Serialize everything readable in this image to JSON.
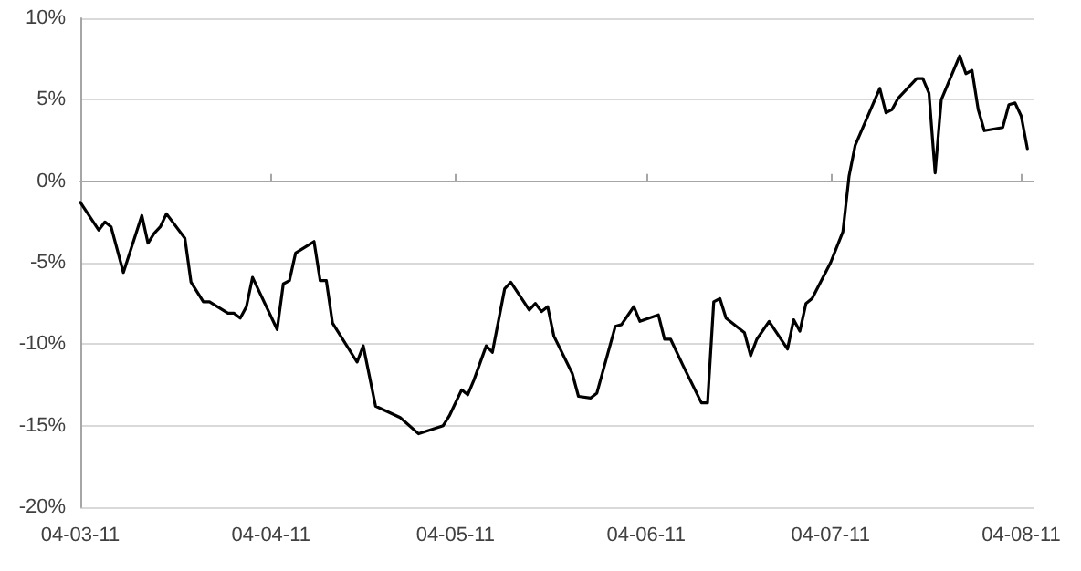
{
  "chart_data": {
    "type": "line",
    "color": "#000000",
    "marker": "none",
    "line_style": "solid",
    "grid": "y",
    "x": [
      "2011-03-04",
      "2011-03-07",
      "2011-03-08",
      "2011-03-09",
      "2011-03-11",
      "2011-03-14",
      "2011-03-15",
      "2011-03-16",
      "2011-03-17",
      "2011-03-18",
      "2011-03-21",
      "2011-03-22",
      "2011-03-24",
      "2011-03-25",
      "2011-03-28",
      "2011-03-29",
      "2011-03-30",
      "2011-03-31",
      "2011-04-01",
      "2011-04-05",
      "2011-04-06",
      "2011-04-07",
      "2011-04-08",
      "2011-04-11",
      "2011-04-12",
      "2011-04-13",
      "2011-04-14",
      "2011-04-18",
      "2011-04-19",
      "2011-04-21",
      "2011-04-25",
      "2011-04-28",
      "2011-05-02",
      "2011-05-03",
      "2011-05-05",
      "2011-05-06",
      "2011-05-07",
      "2011-05-09",
      "2011-05-10",
      "2011-05-12",
      "2011-05-13",
      "2011-05-16",
      "2011-05-17",
      "2011-05-18",
      "2011-05-19",
      "2011-05-20",
      "2011-05-23",
      "2011-05-24",
      "2011-05-26",
      "2011-05-27",
      "2011-05-30",
      "2011-05-31",
      "2011-06-02",
      "2011-06-03",
      "2011-06-06",
      "2011-06-07",
      "2011-06-08",
      "2011-06-10",
      "2011-06-13",
      "2011-06-14",
      "2011-06-15",
      "2011-06-16",
      "2011-06-17",
      "2011-06-20",
      "2011-06-21",
      "2011-06-22",
      "2011-06-24",
      "2011-06-27",
      "2011-06-28",
      "2011-06-29",
      "2011-06-30",
      "2011-07-01",
      "2011-07-04",
      "2011-07-06",
      "2011-07-07",
      "2011-07-08",
      "2011-07-12",
      "2011-07-13",
      "2011-07-14",
      "2011-07-15",
      "2011-07-18",
      "2011-07-19",
      "2011-07-20",
      "2011-07-21",
      "2011-07-22",
      "2011-07-25",
      "2011-07-26",
      "2011-07-27",
      "2011-07-28",
      "2011-07-29",
      "2011-08-01",
      "2011-08-02",
      "2011-08-03",
      "2011-08-04",
      "2011-08-05"
    ],
    "values": [
      -1.3,
      -3.0,
      -2.5,
      -2.8,
      -5.6,
      -2.1,
      -3.8,
      -3.2,
      -2.8,
      -2.0,
      -3.5,
      -6.2,
      -7.4,
      -7.4,
      -8.1,
      -8.1,
      -8.4,
      -7.7,
      -5.9,
      -9.1,
      -6.3,
      -6.1,
      -4.4,
      -3.7,
      -6.1,
      -6.1,
      -8.7,
      -11.1,
      -10.1,
      -13.8,
      -14.5,
      -15.5,
      -15.0,
      -14.4,
      -12.8,
      -13.1,
      -12.2,
      -10.1,
      -10.5,
      -6.6,
      -6.2,
      -7.9,
      -7.5,
      -8.0,
      -7.7,
      -9.5,
      -11.8,
      -13.2,
      -13.3,
      -13.0,
      -8.9,
      -8.8,
      -7.7,
      -8.6,
      -8.2,
      -9.7,
      -9.7,
      -11.3,
      -13.6,
      -13.6,
      -7.4,
      -7.2,
      -8.4,
      -9.3,
      -10.7,
      -9.7,
      -8.6,
      -10.3,
      -8.5,
      -9.2,
      -7.5,
      -7.2,
      -5.0,
      -3.1,
      0.3,
      2.2,
      5.7,
      4.2,
      4.4,
      5.1,
      6.3,
      6.3,
      5.4,
      0.5,
      5.0,
      7.7,
      6.6,
      6.8,
      4.4,
      3.1,
      3.3,
      4.7,
      4.8,
      4.0,
      2.0
    ],
    "xlim": [
      "2011-03-04",
      "2011-08-06"
    ],
    "xticks": [
      {
        "value": "2011-03-04",
        "label": "04-03-11"
      },
      {
        "value": "2011-04-04",
        "label": "04-04-11"
      },
      {
        "value": "2011-05-04",
        "label": "04-05-11"
      },
      {
        "value": "2011-06-04",
        "label": "04-06-11"
      },
      {
        "value": "2011-07-04",
        "label": "04-07-11"
      },
      {
        "value": "2011-08-04",
        "label": "04-08-11"
      }
    ],
    "ylim": [
      -20,
      10
    ],
    "yticks": [
      {
        "value": -20,
        "label": "-20%"
      },
      {
        "value": -15,
        "label": "-15%"
      },
      {
        "value": -10,
        "label": "-10%"
      },
      {
        "value": -5,
        "label": "-5%"
      },
      {
        "value": 0,
        "label": "0%"
      },
      {
        "value": 5,
        "label": "5%"
      },
      {
        "value": 10,
        "label": "10%"
      }
    ]
  }
}
